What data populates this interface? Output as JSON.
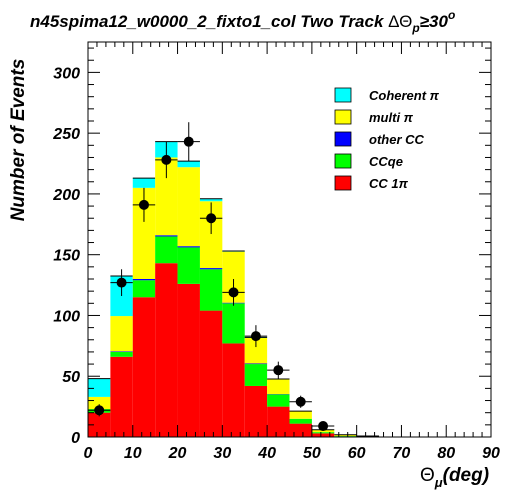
{
  "chart_data": {
    "type": "bar",
    "stacked": true,
    "title": {
      "main": "n45spima12_w0000_2_fixto1_col Two Track ",
      "delta": "ΔΘ",
      "sub": "p",
      "rel": "≥30",
      "sup": "o"
    },
    "xlabel": {
      "sym": "Θ",
      "sub": "μ",
      "rest": "(deg)"
    },
    "ylabel": "Number of Events",
    "xlim": [
      0,
      90
    ],
    "ylim": [
      0,
      325
    ],
    "bin_width": 5,
    "x_ticks": [
      "0",
      "10",
      "20",
      "30",
      "40",
      "50",
      "60",
      "70",
      "80",
      "90"
    ],
    "y_ticks": [
      "0",
      "50",
      "100",
      "150",
      "200",
      "250",
      "300"
    ],
    "bin_lower_edges": [
      0,
      5,
      10,
      15,
      20,
      25,
      30,
      35,
      40,
      45,
      50,
      55,
      60,
      65,
      70,
      75,
      80,
      85
    ],
    "series": [
      {
        "name": "CC 1π",
        "color": "#ff0000",
        "values": [
          20,
          66,
          115,
          143,
          126,
          104,
          77,
          42,
          25,
          11,
          3,
          0.5,
          0.2,
          0,
          0,
          0,
          0,
          0
        ]
      },
      {
        "name": "CCqe",
        "color": "#00ff00",
        "values": [
          3,
          4,
          14,
          22,
          30,
          34,
          33,
          18,
          10,
          4,
          1,
          0.3,
          0.1,
          0,
          0,
          0,
          0,
          0
        ]
      },
      {
        "name": "other CC",
        "color": "#0000ff",
        "values": [
          0,
          0.5,
          1,
          1,
          1,
          1,
          0.5,
          0.5,
          0.3,
          0,
          0,
          0,
          0,
          0,
          0,
          0,
          0,
          0
        ]
      },
      {
        "name": "multi π",
        "color": "#ffff00",
        "values": [
          10,
          29,
          75,
          64,
          65,
          55,
          42,
          21,
          12,
          6,
          2,
          1,
          0.5,
          0,
          0,
          0,
          0,
          0
        ]
      },
      {
        "name": "Coherent π",
        "color": "#00ffff",
        "values": [
          15,
          33,
          8,
          13,
          5,
          2,
          0.5,
          0.5,
          0.4,
          0.3,
          0,
          0,
          0,
          0,
          0,
          0,
          0,
          0
        ]
      }
    ],
    "legend_order": [
      "Coherent π",
      "multi π",
      "other CC",
      "CCqe",
      "CC 1π"
    ],
    "legend_position": "top-right",
    "data_points": {
      "x": [
        2.5,
        7.5,
        12.5,
        17.5,
        22.5,
        27.5,
        32.5,
        37.5,
        42.5,
        47.5,
        52.5
      ],
      "y": [
        22,
        127,
        191,
        228,
        243,
        180,
        119,
        83,
        55,
        29,
        9
      ],
      "yerr": [
        5,
        11,
        14,
        15,
        16,
        13,
        11,
        9,
        7,
        5,
        3
      ]
    }
  }
}
